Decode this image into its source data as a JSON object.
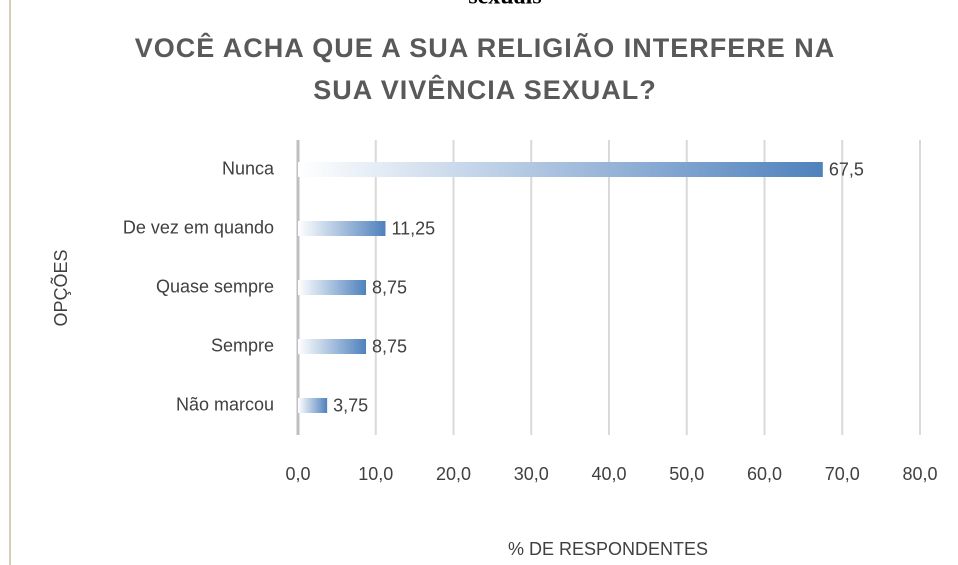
{
  "context_text": "sexuais",
  "chart_data": {
    "type": "barh",
    "title_lines": [
      "VOCÊ ACHA QUE A SUA RELIGIÃO INTERFERE NA",
      "SUA VIVÊNCIA SEXUAL?"
    ],
    "xlabel": "% DE RESPONDENTES",
    "ylabel": "OPÇÕES",
    "categories": [
      "Nunca",
      "De vez em quando",
      "Quase sempre",
      "Sempre",
      "Não marcou"
    ],
    "values": [
      67.5,
      11.25,
      8.75,
      8.75,
      3.75
    ],
    "value_labels": [
      "67,5",
      "11,25",
      "8,75",
      "8,75",
      "3,75"
    ],
    "color": "#4f81bd",
    "xlim": [
      0,
      80
    ],
    "xticks": [
      {
        "value": 0,
        "label": "0,0"
      },
      {
        "value": 10,
        "label": "10,0"
      },
      {
        "value": 20,
        "label": "20,0"
      },
      {
        "value": 30,
        "label": "30,0"
      },
      {
        "value": 40,
        "label": "40,0"
      },
      {
        "value": 50,
        "label": "50,0"
      },
      {
        "value": 60,
        "label": "60,0"
      },
      {
        "value": 70,
        "label": "70,0"
      },
      {
        "value": 80,
        "label": "80,0"
      }
    ],
    "grid": true
  }
}
